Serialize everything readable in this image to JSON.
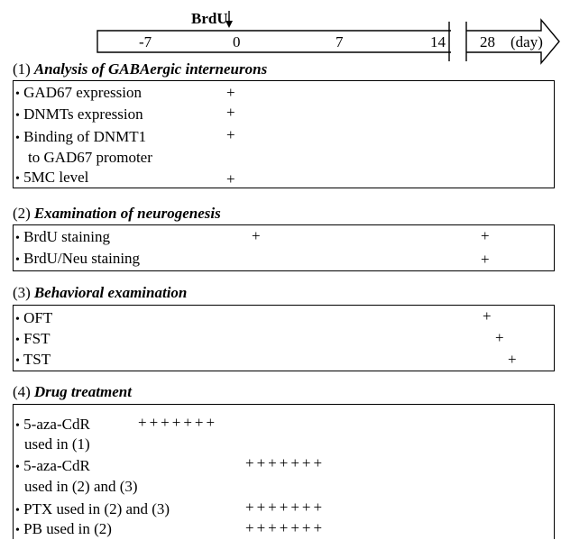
{
  "timeline": {
    "marker_label": "BrdU",
    "ticks": [
      "-7",
      "0",
      "7",
      "14"
    ],
    "tick_28": "28",
    "unit": "(day)"
  },
  "sections": [
    {
      "number": "(1)",
      "title": "Analysis of GABAergic interneurons",
      "items": [
        {
          "text": "GAD67 expression",
          "marks": [
            "+"
          ]
        },
        {
          "text": "DNMTs expression",
          "marks": [
            "+"
          ]
        },
        {
          "text": "Binding of DNMT1",
          "text2": "to  GAD67 promoter",
          "marks": [
            "+"
          ]
        },
        {
          "text": "5MC level",
          "marks": [
            "+"
          ]
        }
      ]
    },
    {
      "number": "(2)",
      "title": "Examination of neurogenesis",
      "items": [
        {
          "text": "BrdU staining",
          "marks": [
            "+",
            "+"
          ]
        },
        {
          "text": "BrdU/Neu staining",
          "marks": [
            "+"
          ]
        }
      ]
    },
    {
      "number": "(3)",
      "title": "Behavioral examination",
      "items": [
        {
          "text": "OFT",
          "marks": [
            "+"
          ]
        },
        {
          "text": "FST",
          "marks": [
            "+"
          ]
        },
        {
          "text": "TST",
          "marks": [
            "+"
          ]
        }
      ]
    },
    {
      "number": "(4)",
      "title": "Drug treatment",
      "items": [
        {
          "text": "5-aza-CdR",
          "text2": "used in (1)",
          "marks": "+++++++"
        },
        {
          "text": "5-aza-CdR",
          "text2": "used in (2) and (3)",
          "marks": "+++++++"
        },
        {
          "text": "PTX used in (2) and (3)",
          "marks": "+++++++"
        },
        {
          "text": "PB  used in (2)",
          "marks": "+++++++"
        }
      ]
    }
  ]
}
